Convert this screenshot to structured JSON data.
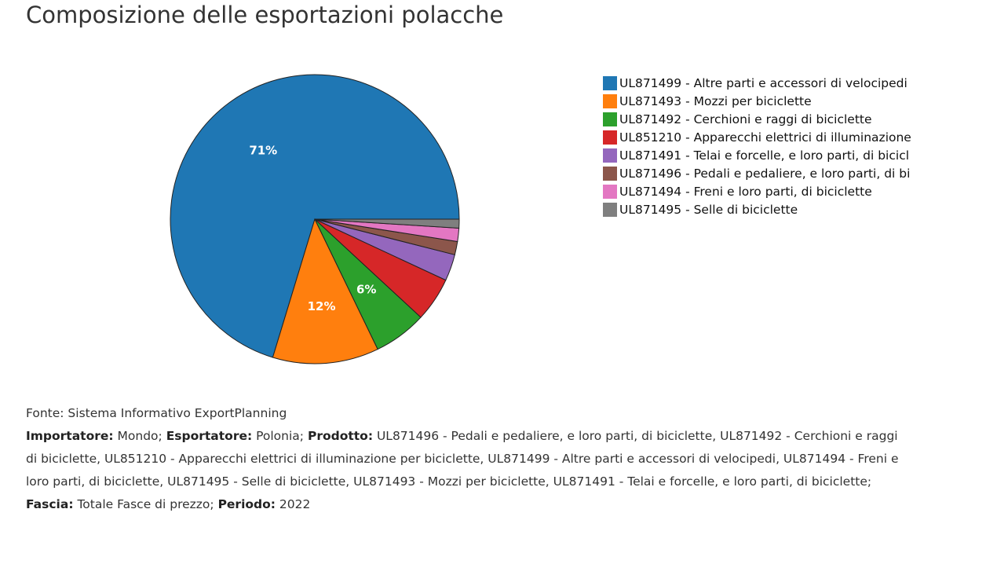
{
  "title": "Composizione delle esportazioni polacche",
  "chart_data": {
    "type": "pie",
    "title": "Composizione delle esportazioni polacche",
    "slices": [
      {
        "label": "UL871499 - Altre parti e accessori di velocipedi",
        "value": 71,
        "color": "#1f77b4",
        "display": "71%"
      },
      {
        "label": "UL871493 - Mozzi per biciclette",
        "value": 12,
        "color": "#ff7f0e",
        "display": "12%"
      },
      {
        "label": "UL871492 - Cerchioni e raggi di biciclette",
        "value": 6,
        "color": "#2ca02c",
        "display": "6%"
      },
      {
        "label": "UL851210 - Apparecchi elettrici di illuminazione per biciclette",
        "value": 5,
        "color": "#d62728",
        "display": ""
      },
      {
        "label": "UL871491 - Telai e forcelle, e loro parti, di biciclette",
        "value": 3,
        "color": "#9467bd",
        "display": ""
      },
      {
        "label": "UL871496 - Pedali e pedaliere, e loro parti, di biciclette",
        "value": 1.5,
        "color": "#8c564b",
        "display": ""
      },
      {
        "label": "UL871494 - Freni e loro parti, di biciclette",
        "value": 1.5,
        "color": "#e377c2",
        "display": ""
      },
      {
        "label": "UL871495 - Selle di biciclette",
        "value": 1,
        "color": "#7f7f7f",
        "display": ""
      }
    ],
    "legend_position": "right"
  },
  "legend": [
    "UL871499 - Altre parti e accessori di velocipedi",
    "UL871493 - Mozzi per biciclette",
    "UL871492 - Cerchioni e raggi di biciclette",
    "UL851210 - Apparecchi elettrici di illuminazione",
    "UL871491 - Telai e forcelle, e loro parti, di bicicl",
    "UL871496 - Pedali e pedaliere, e loro parti, di bi",
    "UL871494 - Freni e loro parti, di biciclette",
    "UL871495 - Selle di biciclette"
  ],
  "source": {
    "fonte": "Fonte: Sistema Informativo ExportPlanning",
    "importatore_label": "Importatore:",
    "importatore_value": " Mondo; ",
    "esportatore_label": "Esportatore:",
    "esportatore_value": " Polonia; ",
    "prodotto_label": "Prodotto:",
    "prodotto_value": " UL871496 - Pedali e pedaliere, e loro parti, di biciclette, UL871492 - Cerchioni e raggi di biciclette, UL851210 - Apparecchi elettrici di illuminazione per biciclette, UL871499 - Altre parti e accessori di velocipedi, UL871494 - Freni e loro parti, di biciclette, UL871495 - Selle di biciclette, UL871493 - Mozzi per biciclette, UL871491 - Telai e forcelle, e loro parti, di biciclette; ",
    "fascia_label": "Fascia:",
    "fascia_value": " Totale Fasce di prezzo; ",
    "periodo_label": "Periodo:",
    "periodo_value": " 2022"
  }
}
